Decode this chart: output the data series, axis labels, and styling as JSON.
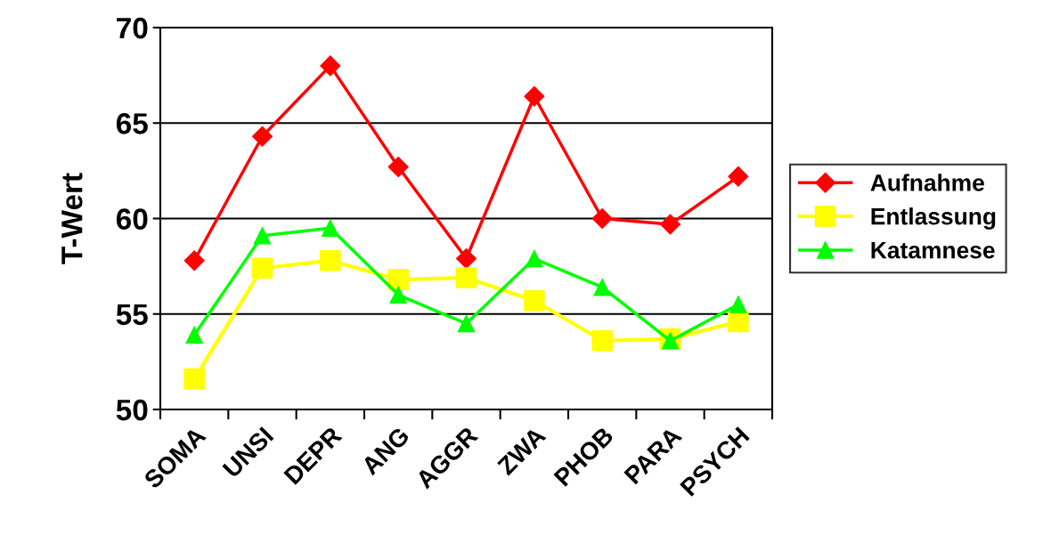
{
  "chart_data": {
    "type": "line",
    "ylabel": "T-Wert",
    "categories": [
      "SOMA",
      "UNSI",
      "DEPR",
      "ANG",
      "AGGR",
      "ZWA",
      "PHOB",
      "PARA",
      "PSYCH"
    ],
    "series": [
      {
        "name": "Aufnahme",
        "color": "#ff0000",
        "marker": "diamond",
        "values": [
          57.8,
          64.3,
          68.0,
          62.7,
          57.9,
          66.4,
          60.0,
          59.7,
          62.2
        ]
      },
      {
        "name": "Entlassung",
        "color": "#ffff00",
        "marker": "square",
        "values": [
          51.6,
          57.4,
          57.8,
          56.8,
          56.9,
          55.7,
          53.6,
          53.7,
          54.6
        ]
      },
      {
        "name": "Katamnese",
        "color": "#00ff00",
        "marker": "triangle",
        "values": [
          53.9,
          59.1,
          59.5,
          56.0,
          54.5,
          57.9,
          56.4,
          53.6,
          55.5
        ]
      }
    ],
    "ylim": [
      50,
      70
    ],
    "yticks": [
      50,
      55,
      60,
      65,
      70
    ],
    "grid": "y",
    "legend": "right",
    "line_style": "solid"
  }
}
